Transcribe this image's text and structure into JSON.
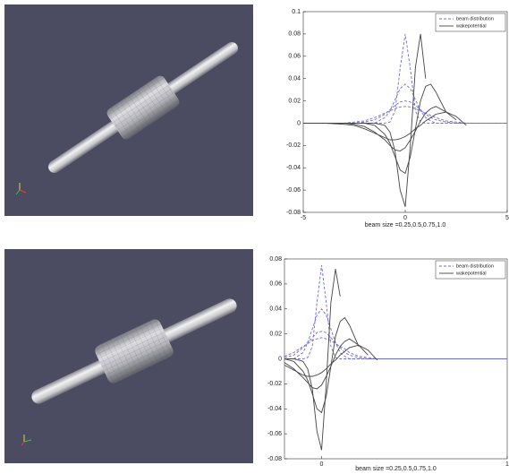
{
  "chart_data": [
    {
      "type": "line",
      "xlabel": "beam size =0.25,0.5,0.75,1.0",
      "x": [
        -5,
        -4,
        -3,
        -2.5,
        -2,
        -1.5,
        -1,
        -0.75,
        -0.5,
        -0.25,
        0,
        0.25,
        0.5,
        0.75,
        1,
        1.25,
        1.5,
        2,
        2.5,
        3,
        4,
        5
      ],
      "xlim": [
        -5,
        5
      ],
      "xticks": [
        -5,
        0,
        5
      ],
      "ylim": [
        -0.08,
        0.1
      ],
      "yticks": [
        -0.08,
        -0.06,
        -0.04,
        -0.02,
        0,
        0.02,
        0.04,
        0.06,
        0.08,
        0.1
      ],
      "legend": "upper right",
      "series": [
        {
          "name": "beam distribution",
          "color": "#6b6bd8",
          "dash": "dashed",
          "curves": [
            [
              0,
              0,
              0,
              0,
              0,
              0,
              0,
              0.001,
              0.011,
              0.049,
              0.08,
              0.049,
              0.011,
              0.001,
              0,
              0,
              0,
              0,
              0,
              0,
              0,
              0
            ],
            [
              0,
              0,
              0,
              0,
              0,
              0,
              0.005,
              0.011,
              0.021,
              0.031,
              0.035,
              0.031,
              0.021,
              0.011,
              0.005,
              0.002,
              0,
              0,
              0,
              0,
              0,
              0
            ],
            [
              0,
              0,
              0,
              0,
              0.001,
              0.003,
              0.008,
              0.012,
              0.016,
              0.019,
              0.02,
              0.019,
              0.016,
              0.012,
              0.008,
              0.005,
              0.003,
              0.001,
              0,
              0,
              0,
              0
            ],
            [
              0,
              0,
              0,
              0.001,
              0.002,
              0.005,
              0.009,
              0.011,
              0.013,
              0.0145,
              0.015,
              0.0145,
              0.013,
              0.011,
              0.009,
              0.007,
              0.005,
              0.002,
              0.001,
              0,
              0,
              0
            ]
          ]
        },
        {
          "name": "wakepotential",
          "color": "#444444",
          "dash": "solid",
          "curves": [
            [
              0,
              0,
              0,
              0,
              0,
              0,
              -0.002,
              -0.008,
              -0.025,
              -0.06,
              -0.075,
              -0.02,
              0.05,
              0.08,
              0.04,
              null,
              null,
              null,
              null,
              null,
              null,
              null
            ],
            [
              0,
              0,
              0,
              0,
              0,
              -0.002,
              -0.01,
              -0.018,
              -0.03,
              -0.042,
              -0.045,
              -0.03,
              -0.005,
              0.02,
              0.033,
              0.035,
              0.028,
              0.01,
              null,
              null,
              null,
              null
            ],
            [
              0,
              0,
              0,
              -0.001,
              -0.003,
              -0.008,
              -0.015,
              -0.02,
              -0.024,
              -0.025,
              -0.022,
              -0.015,
              -0.007,
              0.002,
              0.009,
              0.013,
              0.015,
              0.01,
              0.003,
              null,
              null,
              null
            ],
            [
              0,
              0,
              -0.001,
              -0.002,
              -0.005,
              -0.009,
              -0.013,
              -0.015,
              -0.015,
              -0.014,
              -0.012,
              -0.009,
              -0.005,
              -0.002,
              0.002,
              0.005,
              0.008,
              0.01,
              0.006,
              -0.002,
              null,
              null
            ]
          ]
        }
      ]
    },
    {
      "type": "line",
      "xlabel": "beam size =0.25,0.5,0.75,1.0",
      "x": [
        -2,
        -1.5,
        -1,
        -0.75,
        -0.5,
        -0.25,
        0,
        0.25,
        0.5,
        0.75,
        1,
        1.25,
        1.5,
        2,
        2.5,
        3,
        4,
        5,
        7.5,
        10
      ],
      "xlim": [
        -2,
        10
      ],
      "xticks": [
        0,
        {
          "value": 10,
          "label": "1"
        }
      ],
      "ylim": [
        -0.08,
        0.08
      ],
      "yticks": [
        -0.08,
        -0.06,
        -0.04,
        -0.02,
        0,
        0.02,
        0.04,
        0.06,
        0.08
      ],
      "legend": "upper right",
      "series": [
        {
          "name": "beam distribution",
          "color": "#6b6bd8",
          "dash": "dashed",
          "curves": [
            [
              0,
              0,
              0,
              0.001,
              0.01,
              0.045,
              0.075,
              0.045,
              0.01,
              0.001,
              0,
              0,
              0,
              0,
              0,
              0,
              0,
              0,
              0,
              0
            ],
            [
              0,
              0,
              0.005,
              0.013,
              0.024,
              0.035,
              0.04,
              0.035,
              0.024,
              0.013,
              0.005,
              0.002,
              0,
              0,
              0,
              0,
              0,
              0,
              0,
              0
            ],
            [
              0.001,
              0.003,
              0.009,
              0.013,
              0.017,
              0.021,
              0.022,
              0.021,
              0.017,
              0.013,
              0.009,
              0.005,
              0.003,
              0.001,
              0,
              0,
              0,
              0,
              0,
              0
            ],
            [
              0.002,
              0.005,
              0.01,
              0.012,
              0.015,
              0.016,
              0.017,
              0.016,
              0.015,
              0.012,
              0.01,
              0.008,
              0.005,
              0.002,
              0.001,
              0,
              0,
              0,
              0,
              0
            ]
          ]
        },
        {
          "name": "wakepotential",
          "color": "#444444",
          "dash": "solid",
          "curves": [
            [
              0,
              0,
              -0.002,
              -0.008,
              -0.024,
              -0.058,
              -0.073,
              -0.02,
              0.045,
              0.072,
              0.05,
              null,
              null,
              null,
              null,
              null,
              null,
              null,
              null,
              null
            ],
            [
              0,
              -0.002,
              -0.01,
              -0.017,
              -0.028,
              -0.04,
              -0.043,
              -0.03,
              -0.006,
              0.018,
              0.03,
              0.033,
              0.027,
              0.01,
              null,
              null,
              null,
              null,
              null,
              null
            ],
            [
              -0.003,
              -0.008,
              -0.015,
              -0.019,
              -0.023,
              -0.024,
              -0.021,
              -0.014,
              -0.006,
              0.003,
              0.01,
              0.014,
              0.016,
              0.011,
              0.003,
              null,
              null,
              null,
              null,
              null
            ],
            [
              -0.005,
              -0.009,
              -0.013,
              -0.014,
              -0.014,
              -0.013,
              -0.011,
              -0.008,
              -0.004,
              -0.001,
              0.003,
              0.006,
              0.009,
              0.011,
              0.007,
              -0.001,
              null,
              null,
              null,
              null
            ]
          ]
        }
      ]
    }
  ]
}
